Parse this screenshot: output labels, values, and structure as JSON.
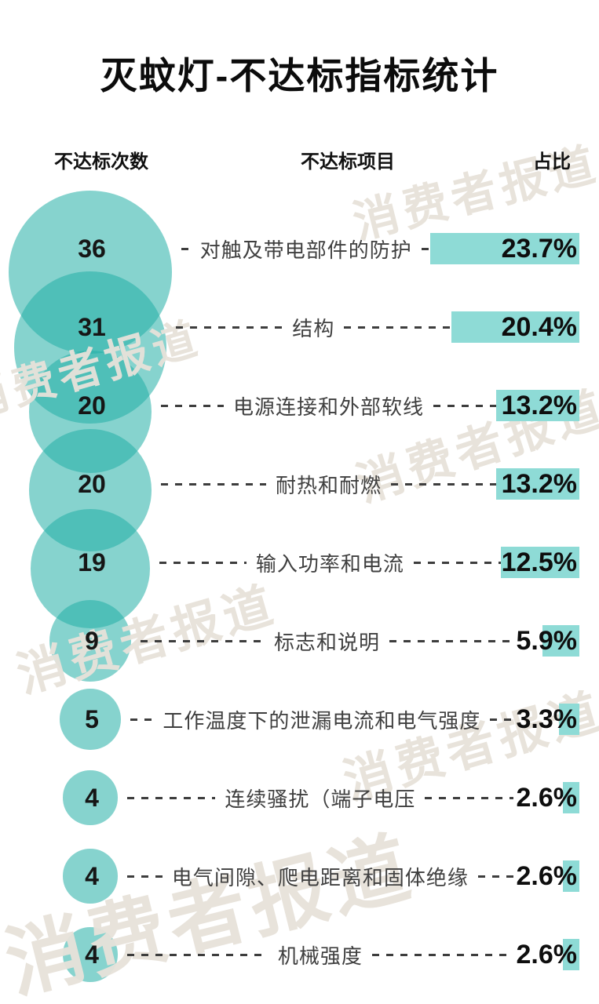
{
  "title": "灭蚊灯-不达标指标统计",
  "watermark_text": "消费者报道",
  "columns": {
    "count": "不达标次数",
    "item": "不达标项目",
    "share": "占比"
  },
  "colors": {
    "bubble": "rgba(35,175,166,0.55)",
    "bubble_overlap_appearance": "#52bfb8",
    "bar": "#8edbd6",
    "dash": "#3d3d3d",
    "number_text": "#161616",
    "label_text": "#3f3f3f",
    "watermark": "rgba(231,226,217,0.95)"
  },
  "chart_data": {
    "type": "bar",
    "subtype": "bubble-and-bar infographic, one row per failed test item",
    "title": "灭蚊灯-不达标指标统计",
    "columns": [
      "不达标次数",
      "不达标项目",
      "占比"
    ],
    "bubble_column_note": "bubble area proportional to count, overlapping vertical chain",
    "bar_note": "teal bars right-aligned, width proportional to percent",
    "rows": [
      {
        "count": 36,
        "label": "对触及带电部件的防护",
        "pct": 23.7,
        "pct_label": "23.7%"
      },
      {
        "count": 31,
        "label": "结构",
        "pct": 20.4,
        "pct_label": "20.4%"
      },
      {
        "count": 20,
        "label": "电源连接和外部软线",
        "pct": 13.2,
        "pct_label": "13.2%"
      },
      {
        "count": 20,
        "label": "耐热和耐燃",
        "pct": 13.2,
        "pct_label": "13.2%"
      },
      {
        "count": 19,
        "label": "输入功率和电流",
        "pct": 12.5,
        "pct_label": "12.5%"
      },
      {
        "count": 9,
        "label": "标志和说明",
        "pct": 5.9,
        "pct_label": "5.9%"
      },
      {
        "count": 5,
        "label": "工作温度下的泄漏电流和电气强度",
        "pct": 3.3,
        "pct_label": "3.3%"
      },
      {
        "count": 4,
        "label": "连续骚扰（端子电压",
        "pct": 2.6,
        "pct_label": "2.6%"
      },
      {
        "count": 4,
        "label": "电气间隙、爬电距离和固体绝缘",
        "pct": 2.6,
        "pct_label": "2.6%"
      },
      {
        "count": 4,
        "label": "机械强度",
        "pct": 2.6,
        "pct_label": "2.6%"
      }
    ]
  }
}
